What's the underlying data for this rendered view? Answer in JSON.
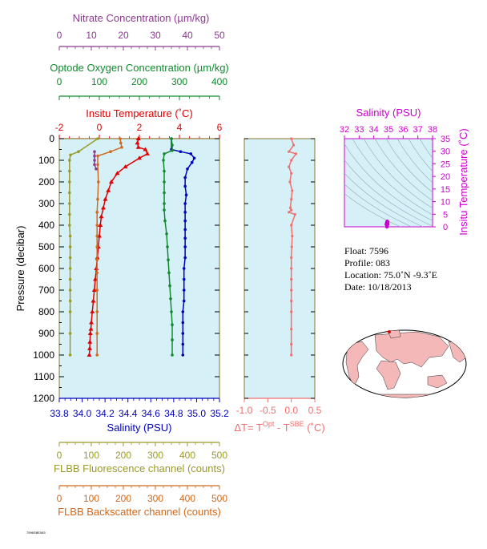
{
  "axes": {
    "nitrate": {
      "title": "Nitrate Concentration (µm/kg)",
      "ticks": [
        "0",
        "10",
        "20",
        "30",
        "40",
        "50"
      ],
      "range": [
        0,
        50
      ],
      "color": "#8b3a8f"
    },
    "oxygen": {
      "title": "Optode Oxygen Concentration (µm/kg)",
      "ticks": [
        "0",
        "100",
        "200",
        "300",
        "400"
      ],
      "range": [
        0,
        400
      ],
      "color": "#118a2e"
    },
    "temperature": {
      "title": "Insitu Temperature (˚C)",
      "ticks": [
        "-2",
        "0",
        "2",
        "4",
        "6"
      ],
      "range": [
        -2,
        6
      ],
      "color": "#e00000"
    },
    "pressure": {
      "title": "Pressure (decibar)",
      "ticks": [
        "0",
        "100",
        "200",
        "300",
        "400",
        "500",
        "600",
        "700",
        "800",
        "900",
        "1000",
        "1100",
        "1200"
      ],
      "range": [
        0,
        1200
      ]
    },
    "salinity": {
      "title": "Salinity (PSU)",
      "ticks": [
        "33.8",
        "34.0",
        "34.2",
        "34.4",
        "34.6",
        "34.8",
        "35.0",
        "35.2"
      ],
      "range": [
        33.8,
        35.2
      ],
      "color": "#0000bb"
    },
    "fluorescence": {
      "title": "FLBB Fluorescence channel (counts)",
      "ticks": [
        "0",
        "100",
        "200",
        "300",
        "400",
        "500"
      ],
      "range": [
        0,
        500
      ],
      "color": "#9a9a2a"
    },
    "backscatter": {
      "title": "FLBB Backscatter channel (counts)",
      "ticks": [
        "0",
        "100",
        "200",
        "300",
        "400",
        "500"
      ],
      "range": [
        0,
        500
      ],
      "color": "#d2691e"
    },
    "dt": {
      "title_prefix": "ΔT= T",
      "title_sup1": "Opt",
      "title_mid": " - T",
      "title_sup2": "SBE",
      "title_suffix": " (˚C)",
      "ticks": [
        "-1.0",
        "-0.5",
        "0.0",
        "0.5"
      ],
      "range": [
        -1.0,
        0.5
      ],
      "color": "#f07070"
    },
    "ts_salinity": {
      "title": "Salinity (PSU)",
      "ticks": [
        "32",
        "33",
        "34",
        "35",
        "36",
        "37",
        "38"
      ],
      "range": [
        32,
        38
      ],
      "color": "#cc00cc"
    },
    "ts_temperature": {
      "title": "Insitu Temperature (˚C)",
      "ticks": [
        "0",
        "5",
        "10",
        "15",
        "20",
        "25",
        "30",
        "35"
      ],
      "range": [
        0,
        35
      ],
      "color": "#cc00cc"
    }
  },
  "info": {
    "float": "Float:  7596",
    "profile": "Profile:  083",
    "location": "Location:  75.0˚N  -9.3˚E",
    "date": "Date:  10/18/2013"
  },
  "colors": {
    "plot_bg": "#d6f0f8",
    "land": "#f5b8b8",
    "ocean": "#ffffff",
    "frame": "#8a7a2a"
  },
  "chart_data": [
    {
      "type": "line",
      "title": "",
      "ylabel": "Pressure (decibar)",
      "ylim": [
        1200,
        0
      ],
      "series": [
        {
          "name": "Insitu Temperature (˚C)",
          "unit": "temperature",
          "color": "#e00000",
          "marker": "triangle",
          "x": [
            1.95,
            1.9,
            1.95,
            2.3,
            2.4,
            2.0,
            1.3,
            0.9,
            0.6,
            0.45,
            0.3,
            0.2,
            0.1,
            0.05,
            0.0,
            -0.05,
            -0.1,
            -0.15,
            -0.2,
            -0.25,
            -0.3,
            -0.35,
            -0.4,
            -0.42,
            -0.45,
            -0.47,
            -0.48,
            -0.5
          ],
          "y": [
            0,
            20,
            40,
            50,
            70,
            90,
            130,
            160,
            200,
            240,
            280,
            320,
            360,
            400,
            450,
            500,
            550,
            600,
            650,
            700,
            750,
            800,
            850,
            880,
            900,
            940,
            970,
            1000
          ]
        },
        {
          "name": "Salinity (PSU)",
          "unit": "salinity",
          "color": "#0000bb",
          "marker": "dot",
          "x": [
            34.78,
            34.78,
            34.86,
            34.95,
            34.98,
            34.96,
            34.92,
            34.9,
            34.9,
            34.91,
            34.9,
            34.9,
            34.9,
            34.9,
            34.9,
            34.9,
            34.9,
            34.89,
            34.89,
            34.89,
            34.89,
            34.88,
            34.88,
            34.88,
            34.88,
            34.88
          ],
          "y": [
            0,
            50,
            60,
            70,
            90,
            110,
            140,
            180,
            220,
            260,
            300,
            340,
            380,
            420,
            460,
            500,
            550,
            600,
            650,
            700,
            750,
            800,
            850,
            900,
            950,
            1000
          ]
        },
        {
          "name": "Optode Oxygen Concentration (µm/kg)",
          "unit": "oxygen",
          "color": "#118a2e",
          "marker": "dot",
          "x": [
            280,
            282,
            282,
            262,
            260,
            262,
            262,
            262,
            262,
            262,
            264,
            268,
            270,
            272,
            274,
            276,
            278,
            280,
            282,
            282,
            282
          ],
          "y": [
            0,
            30,
            55,
            70,
            100,
            150,
            200,
            250,
            300,
            330,
            380,
            440,
            500,
            560,
            620,
            680,
            740,
            800,
            860,
            930,
            1000
          ]
        },
        {
          "name": "FLBB Fluorescence channel (counts)",
          "unit": "fluorescence",
          "color": "#9a9a2a",
          "marker": "dot",
          "x": [
            120,
            60,
            35,
            32,
            32,
            32,
            32,
            32,
            32,
            32,
            34,
            34,
            34,
            34,
            34,
            34,
            34,
            34,
            34,
            34
          ],
          "y": [
            0,
            60,
            75,
            100,
            150,
            200,
            250,
            300,
            350,
            400,
            450,
            500,
            550,
            600,
            650,
            700,
            750,
            800,
            900,
            1000
          ]
        },
        {
          "name": "FLBB Backscatter channel (counts)",
          "unit": "backscatter",
          "color": "#d2691e",
          "marker": "dot",
          "x": [
            190,
            192,
            195,
            160,
            120,
            120,
            122,
            120,
            118,
            118,
            118,
            118,
            118,
            118,
            118,
            118,
            118,
            118
          ],
          "y": [
            0,
            20,
            40,
            60,
            80,
            120,
            200,
            280,
            340,
            400,
            450,
            500,
            560,
            620,
            700,
            800,
            900,
            1000
          ]
        },
        {
          "name": "Nitrate Concentration (µm/kg)",
          "unit": "nitrate",
          "color": "#8b3a8f",
          "marker": "dot",
          "x": [
            11,
            11,
            11,
            11,
            11.5
          ],
          "y": [
            60,
            80,
            100,
            120,
            140
          ]
        }
      ]
    },
    {
      "type": "line",
      "xlabel": "ΔT= T(Opt) - T(SBE) (˚C)",
      "xlim": [
        -1.0,
        0.5
      ],
      "ylim": [
        1200,
        0
      ],
      "series": [
        {
          "name": "dT",
          "color": "#f07070",
          "x": [
            0.0,
            0.05,
            -0.05,
            0.1,
            0.0,
            -0.05,
            0.0,
            -0.03,
            0.02,
            0.0,
            -0.02,
            0.0,
            -0.05,
            0.08,
            0.0,
            0.02,
            0.01,
            0.0,
            0.0,
            0.0,
            0.0,
            0.0,
            0.0,
            0.0,
            0.0,
            0.0
          ],
          "y": [
            0,
            30,
            60,
            70,
            100,
            130,
            160,
            200,
            240,
            280,
            320,
            330,
            340,
            350,
            400,
            450,
            500,
            550,
            600,
            650,
            700,
            750,
            800,
            880,
            950,
            1000
          ]
        }
      ]
    },
    {
      "type": "scatter",
      "xlabel": "Salinity (PSU)",
      "ylabel": "Insitu Temperature (˚C)",
      "xlim": [
        32,
        38
      ],
      "ylim": [
        0,
        35
      ],
      "series": [
        {
          "name": "TS",
          "color": "#cc00cc",
          "x": [
            34.9,
            34.95,
            34.88,
            34.9,
            34.92,
            34.85,
            34.9,
            34.95
          ],
          "y": [
            0.5,
            1.0,
            1.5,
            2.0,
            2.2,
            1.0,
            0.0,
            1.8
          ]
        }
      ]
    }
  ]
}
